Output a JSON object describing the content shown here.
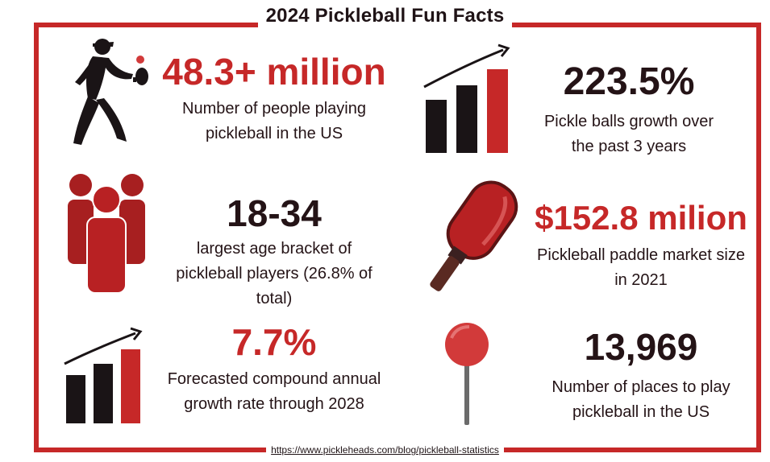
{
  "title": "2024 Pickleball Fun Facts",
  "source": "https://www.pickleheads.com/blog/pickleball-statistics",
  "colors": {
    "accent": "#c62828",
    "dark": "#1a1416",
    "pin": "#d23a3a"
  },
  "facts": [
    {
      "icon": "player-silhouette-icon",
      "value": "48.3+ million",
      "description": [
        "Number of people playing",
        "pickleball in the US"
      ]
    },
    {
      "icon": "growth-bar-chart-icon",
      "value": "223.5%",
      "description": [
        "Pickle balls growth over",
        "the past 3 years"
      ]
    },
    {
      "icon": "people-group-icon",
      "value": "18-34",
      "description": [
        "largest age bracket of",
        "pickleball players (26.8% of",
        "total)"
      ]
    },
    {
      "icon": "pickleball-paddle-icon",
      "value": "$152.8 milion",
      "description": [
        "Pickleball paddle market size",
        "in 2021"
      ]
    },
    {
      "icon": "growth-bar-chart-icon",
      "value": "7.7%",
      "description": [
        "Forecasted compound annual",
        "growth rate through 2028"
      ]
    },
    {
      "icon": "map-pin-icon",
      "value": "13,969",
      "description": [
        "Number of places to play",
        "pickleball in the US"
      ]
    }
  ]
}
